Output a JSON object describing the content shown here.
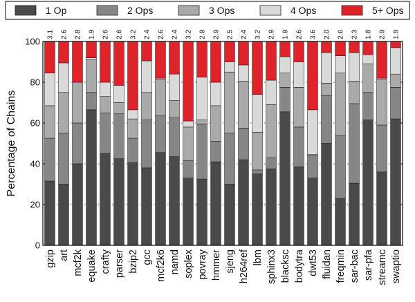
{
  "chart_data": {
    "type": "bar",
    "stacked": true,
    "title": "",
    "xlabel": "",
    "ylabel": "Percentage of Chains",
    "ylim": [
      0,
      100
    ],
    "yticks": [
      0,
      20,
      40,
      60,
      80,
      100
    ],
    "grid": "horizontal dotted",
    "legend_position": "top",
    "categories": [
      "gzip",
      "art",
      "mcf2k",
      "equake",
      "crafty",
      "parser",
      "bzip2",
      "gcc",
      "mcf2k6",
      "namd",
      "soplex",
      "povray",
      "hmmer",
      "sjeng",
      "h264ref",
      "lbm",
      "sphinx3",
      "blacksc",
      "bodytra",
      "dwt53",
      "fluidan",
      "freqmin",
      "sar-bac",
      "sar-pfa",
      "streamc",
      "swaptio"
    ],
    "top_labels": [
      "3.1",
      "2.6",
      "2.8",
      "1.9",
      "2.6",
      "2.6",
      "3.2",
      "2.4",
      "2.6",
      "2.4",
      "3.2",
      "2.9",
      "2.9",
      "2.5",
      "2.4",
      "3.2",
      "2.9",
      "1.9",
      "2.6",
      "3.6",
      "2.0",
      "2.6",
      "2.3",
      "1.8",
      "2.9",
      "1.9"
    ],
    "series": [
      {
        "name": "1 Op",
        "color": "#4a4a4a",
        "values": [
          31.5,
          30,
          40,
          66.5,
          45,
          42.5,
          40.5,
          38,
          45.5,
          43.5,
          33,
          32.5,
          41,
          30,
          42,
          35,
          37.5,
          65.5,
          38.5,
          33,
          50,
          23,
          30.5,
          61.5,
          36,
          62
        ]
      },
      {
        "name": "2 Ops",
        "color": "#868686",
        "values": [
          21,
          25,
          20,
          8.5,
          20,
          22,
          12,
          23.5,
          18,
          19,
          8.5,
          27,
          10,
          25,
          15.5,
          2,
          5.5,
          12,
          19.5,
          11,
          23.5,
          31,
          39,
          13.5,
          23,
          15.5
        ]
      },
      {
        "name": "3 Ops",
        "color": "#aaaaaa",
        "values": [
          16,
          20,
          20,
          16,
          8,
          5.5,
          9.5,
          13.5,
          18,
          8.5,
          16.5,
          2,
          17.5,
          30,
          23,
          18.5,
          26,
          7,
          19.5,
          0.5,
          6,
          30.5,
          11,
          14,
          22.5,
          6.5
        ]
      },
      {
        "name": "4 Ops",
        "color": "#d9d9d9",
        "values": [
          16,
          14.5,
          0,
          1,
          7,
          8.5,
          4.5,
          15.5,
          0.5,
          13,
          3,
          21,
          11.5,
          5,
          8,
          18.5,
          12,
          8,
          12.5,
          22,
          15,
          8.5,
          14,
          4.5,
          0.5,
          13
        ]
      },
      {
        "name": "5+ Ops",
        "color": "#e0222a",
        "values": [
          15.5,
          10.5,
          20,
          8,
          20,
          21.5,
          33.5,
          9.5,
          18,
          16,
          39,
          17.5,
          20,
          10,
          11.5,
          26,
          19,
          7.5,
          10,
          33.5,
          5.5,
          7,
          5.5,
          6.5,
          18,
          3
        ]
      }
    ]
  }
}
